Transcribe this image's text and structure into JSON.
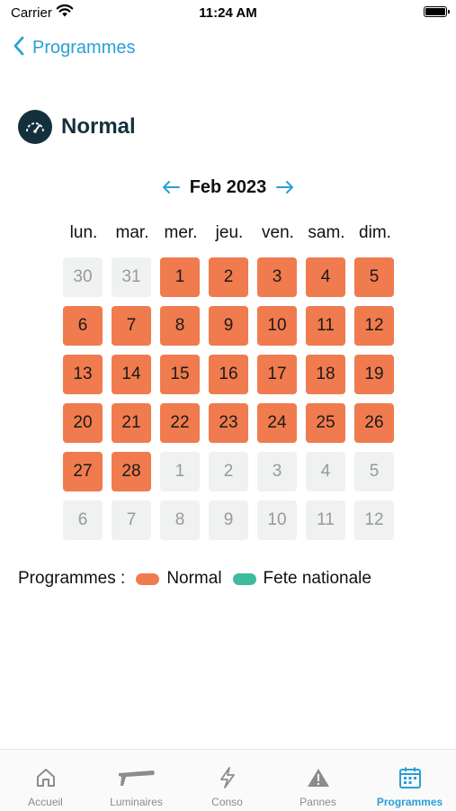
{
  "status_bar": {
    "carrier": "Carrier",
    "time": "11:24 AM"
  },
  "nav": {
    "back_label": "Programmes"
  },
  "program": {
    "name": "Normal",
    "icon": "gauge-icon"
  },
  "calendar": {
    "month_label": "Feb 2023",
    "weekdays": [
      "lun.",
      "mar.",
      "mer.",
      "jeu.",
      "ven.",
      "sam.",
      "dim."
    ],
    "days": [
      {
        "n": "30",
        "active": false
      },
      {
        "n": "31",
        "active": false
      },
      {
        "n": "1",
        "active": true
      },
      {
        "n": "2",
        "active": true
      },
      {
        "n": "3",
        "active": true
      },
      {
        "n": "4",
        "active": true
      },
      {
        "n": "5",
        "active": true
      },
      {
        "n": "6",
        "active": true
      },
      {
        "n": "7",
        "active": true
      },
      {
        "n": "8",
        "active": true
      },
      {
        "n": "9",
        "active": true
      },
      {
        "n": "10",
        "active": true
      },
      {
        "n": "11",
        "active": true
      },
      {
        "n": "12",
        "active": true
      },
      {
        "n": "13",
        "active": true
      },
      {
        "n": "14",
        "active": true
      },
      {
        "n": "15",
        "active": true
      },
      {
        "n": "16",
        "active": true
      },
      {
        "n": "17",
        "active": true
      },
      {
        "n": "18",
        "active": true
      },
      {
        "n": "19",
        "active": true
      },
      {
        "n": "20",
        "active": true
      },
      {
        "n": "21",
        "active": true
      },
      {
        "n": "22",
        "active": true
      },
      {
        "n": "23",
        "active": true
      },
      {
        "n": "24",
        "active": true
      },
      {
        "n": "25",
        "active": true
      },
      {
        "n": "26",
        "active": true
      },
      {
        "n": "27",
        "active": true
      },
      {
        "n": "28",
        "active": true
      },
      {
        "n": "1",
        "active": false
      },
      {
        "n": "2",
        "active": false
      },
      {
        "n": "3",
        "active": false
      },
      {
        "n": "4",
        "active": false
      },
      {
        "n": "5",
        "active": false
      },
      {
        "n": "6",
        "active": false
      },
      {
        "n": "7",
        "active": false
      },
      {
        "n": "8",
        "active": false
      },
      {
        "n": "9",
        "active": false
      },
      {
        "n": "10",
        "active": false
      },
      {
        "n": "11",
        "active": false
      },
      {
        "n": "12",
        "active": false
      }
    ]
  },
  "legend": {
    "label": "Programmes :",
    "items": [
      {
        "name": "Normal",
        "color": "#f07b4e"
      },
      {
        "name": "Fete nationale",
        "color": "#3dbb9c"
      }
    ]
  },
  "colors": {
    "accent": "#2a9fd6",
    "active_day": "#f07b4e",
    "inactive_day": "#f0f1f1",
    "header_dark": "#15303d"
  },
  "tabs": [
    {
      "label": "Accueil",
      "icon": "home-icon",
      "selected": false
    },
    {
      "label": "Luminaires",
      "icon": "luminaire-icon",
      "selected": false
    },
    {
      "label": "Conso",
      "icon": "lightning-icon",
      "selected": false
    },
    {
      "label": "Pannes",
      "icon": "warning-icon",
      "selected": false
    },
    {
      "label": "Programmes",
      "icon": "calendar-icon",
      "selected": true
    }
  ]
}
